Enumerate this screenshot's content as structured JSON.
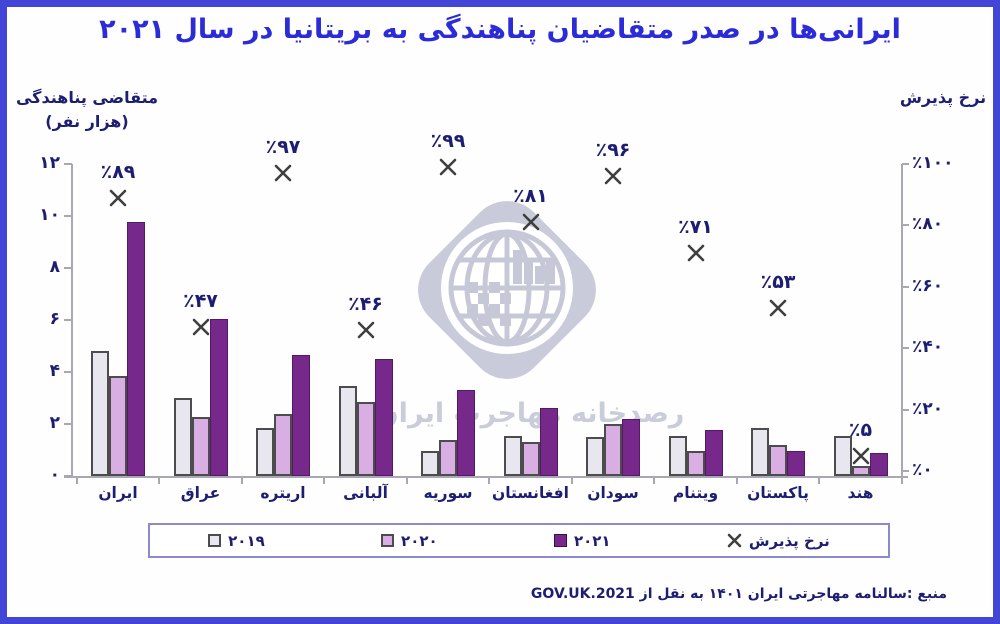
{
  "frame": {
    "border_color": "#4245d6",
    "background": "#fefefe"
  },
  "title": {
    "text": "ایرانی‌ها در صدر متقاضیان پناهندگی به بریتانیا در سال ۲۰۲۱",
    "color": "#2b2bd8"
  },
  "axis_left": {
    "title_line1": "متقاضی پناهندگی",
    "title_line2": "(هزار نفر)",
    "tick_labels": [
      "۱۲",
      "۱۰",
      "۸",
      "۶",
      "۴",
      "۲",
      "۰"
    ],
    "tick_values": [
      12,
      10,
      8,
      6,
      4,
      2,
      0
    ]
  },
  "axis_right": {
    "title": "نرخ پذیرش",
    "tick_labels": [
      "٪۱۰۰",
      "٪۸۰",
      "٪۶۰",
      "٪۴۰",
      "٪۲۰",
      "٪۰"
    ],
    "tick_values": [
      100,
      80,
      60,
      40,
      20,
      0
    ]
  },
  "chart_data": {
    "type": "bar",
    "categories": [
      "ایران",
      "عراق",
      "اریتره",
      "آلبانی",
      "سوریه",
      "افغانستان",
      "سودان",
      "ویتنام",
      "پاکستان",
      "هند"
    ],
    "series": [
      {
        "name": "۲۰۱۹",
        "color": "#e8e6ee",
        "values": [
          4.8,
          3.0,
          1.85,
          3.45,
          0.95,
          1.55,
          1.5,
          1.55,
          1.85,
          1.55
        ]
      },
      {
        "name": "۲۰۲۰",
        "color": "#d9aee3",
        "values": [
          3.85,
          2.25,
          2.4,
          2.85,
          1.4,
          1.3,
          2.0,
          0.95,
          1.2,
          0.4
        ]
      },
      {
        "name": "۲۰۲۱",
        "color": "#76298a",
        "values": [
          9.75,
          6.05,
          4.65,
          4.5,
          3.3,
          2.6,
          2.2,
          1.75,
          0.95,
          0.9
        ]
      }
    ],
    "acceptance_rate": {
      "name": "نرخ پذیرش",
      "marker": "x",
      "values": [
        89,
        47,
        97,
        46,
        99,
        81,
        96,
        71,
        53,
        5
      ],
      "labels": [
        "٪۸۹",
        "٪۴۷",
        "٪۹۷",
        "٪۴۶",
        "٪۹۹",
        "٪۸۱",
        "٪۹۶",
        "٪۷۱",
        "٪۵۳",
        "٪۵"
      ]
    },
    "ylim_left": [
      0,
      12
    ],
    "ylim_right": [
      0,
      100
    ],
    "grid": false,
    "legend_position": "bottom"
  },
  "watermark": {
    "text": "رصدخانه مهاجرت ایران"
  },
  "source": {
    "text": "منبع :سالنامه مهاجرتی ایران ۱۴۰۱ به نقل از GOV.UK.2021"
  },
  "colors": {
    "axis_text": "#1d1d72",
    "axis_line": "#a8a8b4",
    "marker": "#3f3f3f",
    "legend_border": "#8a8ace",
    "watermark": "#c9cbda"
  }
}
